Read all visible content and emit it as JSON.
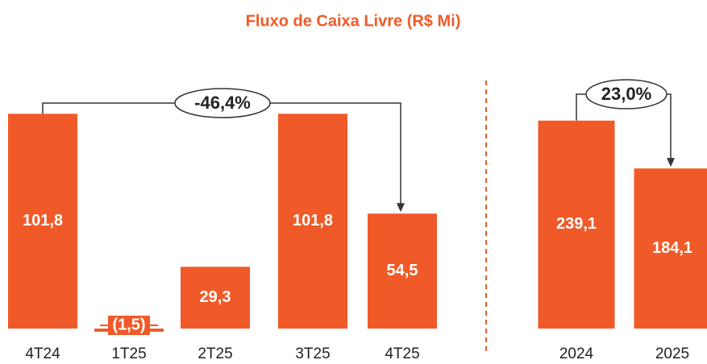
{
  "title": "Fluxo de Caixa Livre (R$ Mi)",
  "chart_data": [
    {
      "type": "bar",
      "categories": [
        "4T24",
        "1T25",
        "2T25",
        "3T25",
        "4T25"
      ],
      "values": [
        101.8,
        -1.5,
        29.3,
        101.8,
        54.5
      ],
      "value_labels": [
        "101,8",
        "(1,5)",
        "29,3",
        "101,8",
        "54,5"
      ],
      "color": "#f05a28",
      "annotation": "-46,4%"
    },
    {
      "type": "bar",
      "categories": [
        "2024",
        "2025"
      ],
      "values": [
        239.1,
        184.1
      ],
      "value_labels": [
        "239,1",
        "184,1"
      ],
      "color": "#f05a28",
      "annotation": "23,0%"
    }
  ]
}
